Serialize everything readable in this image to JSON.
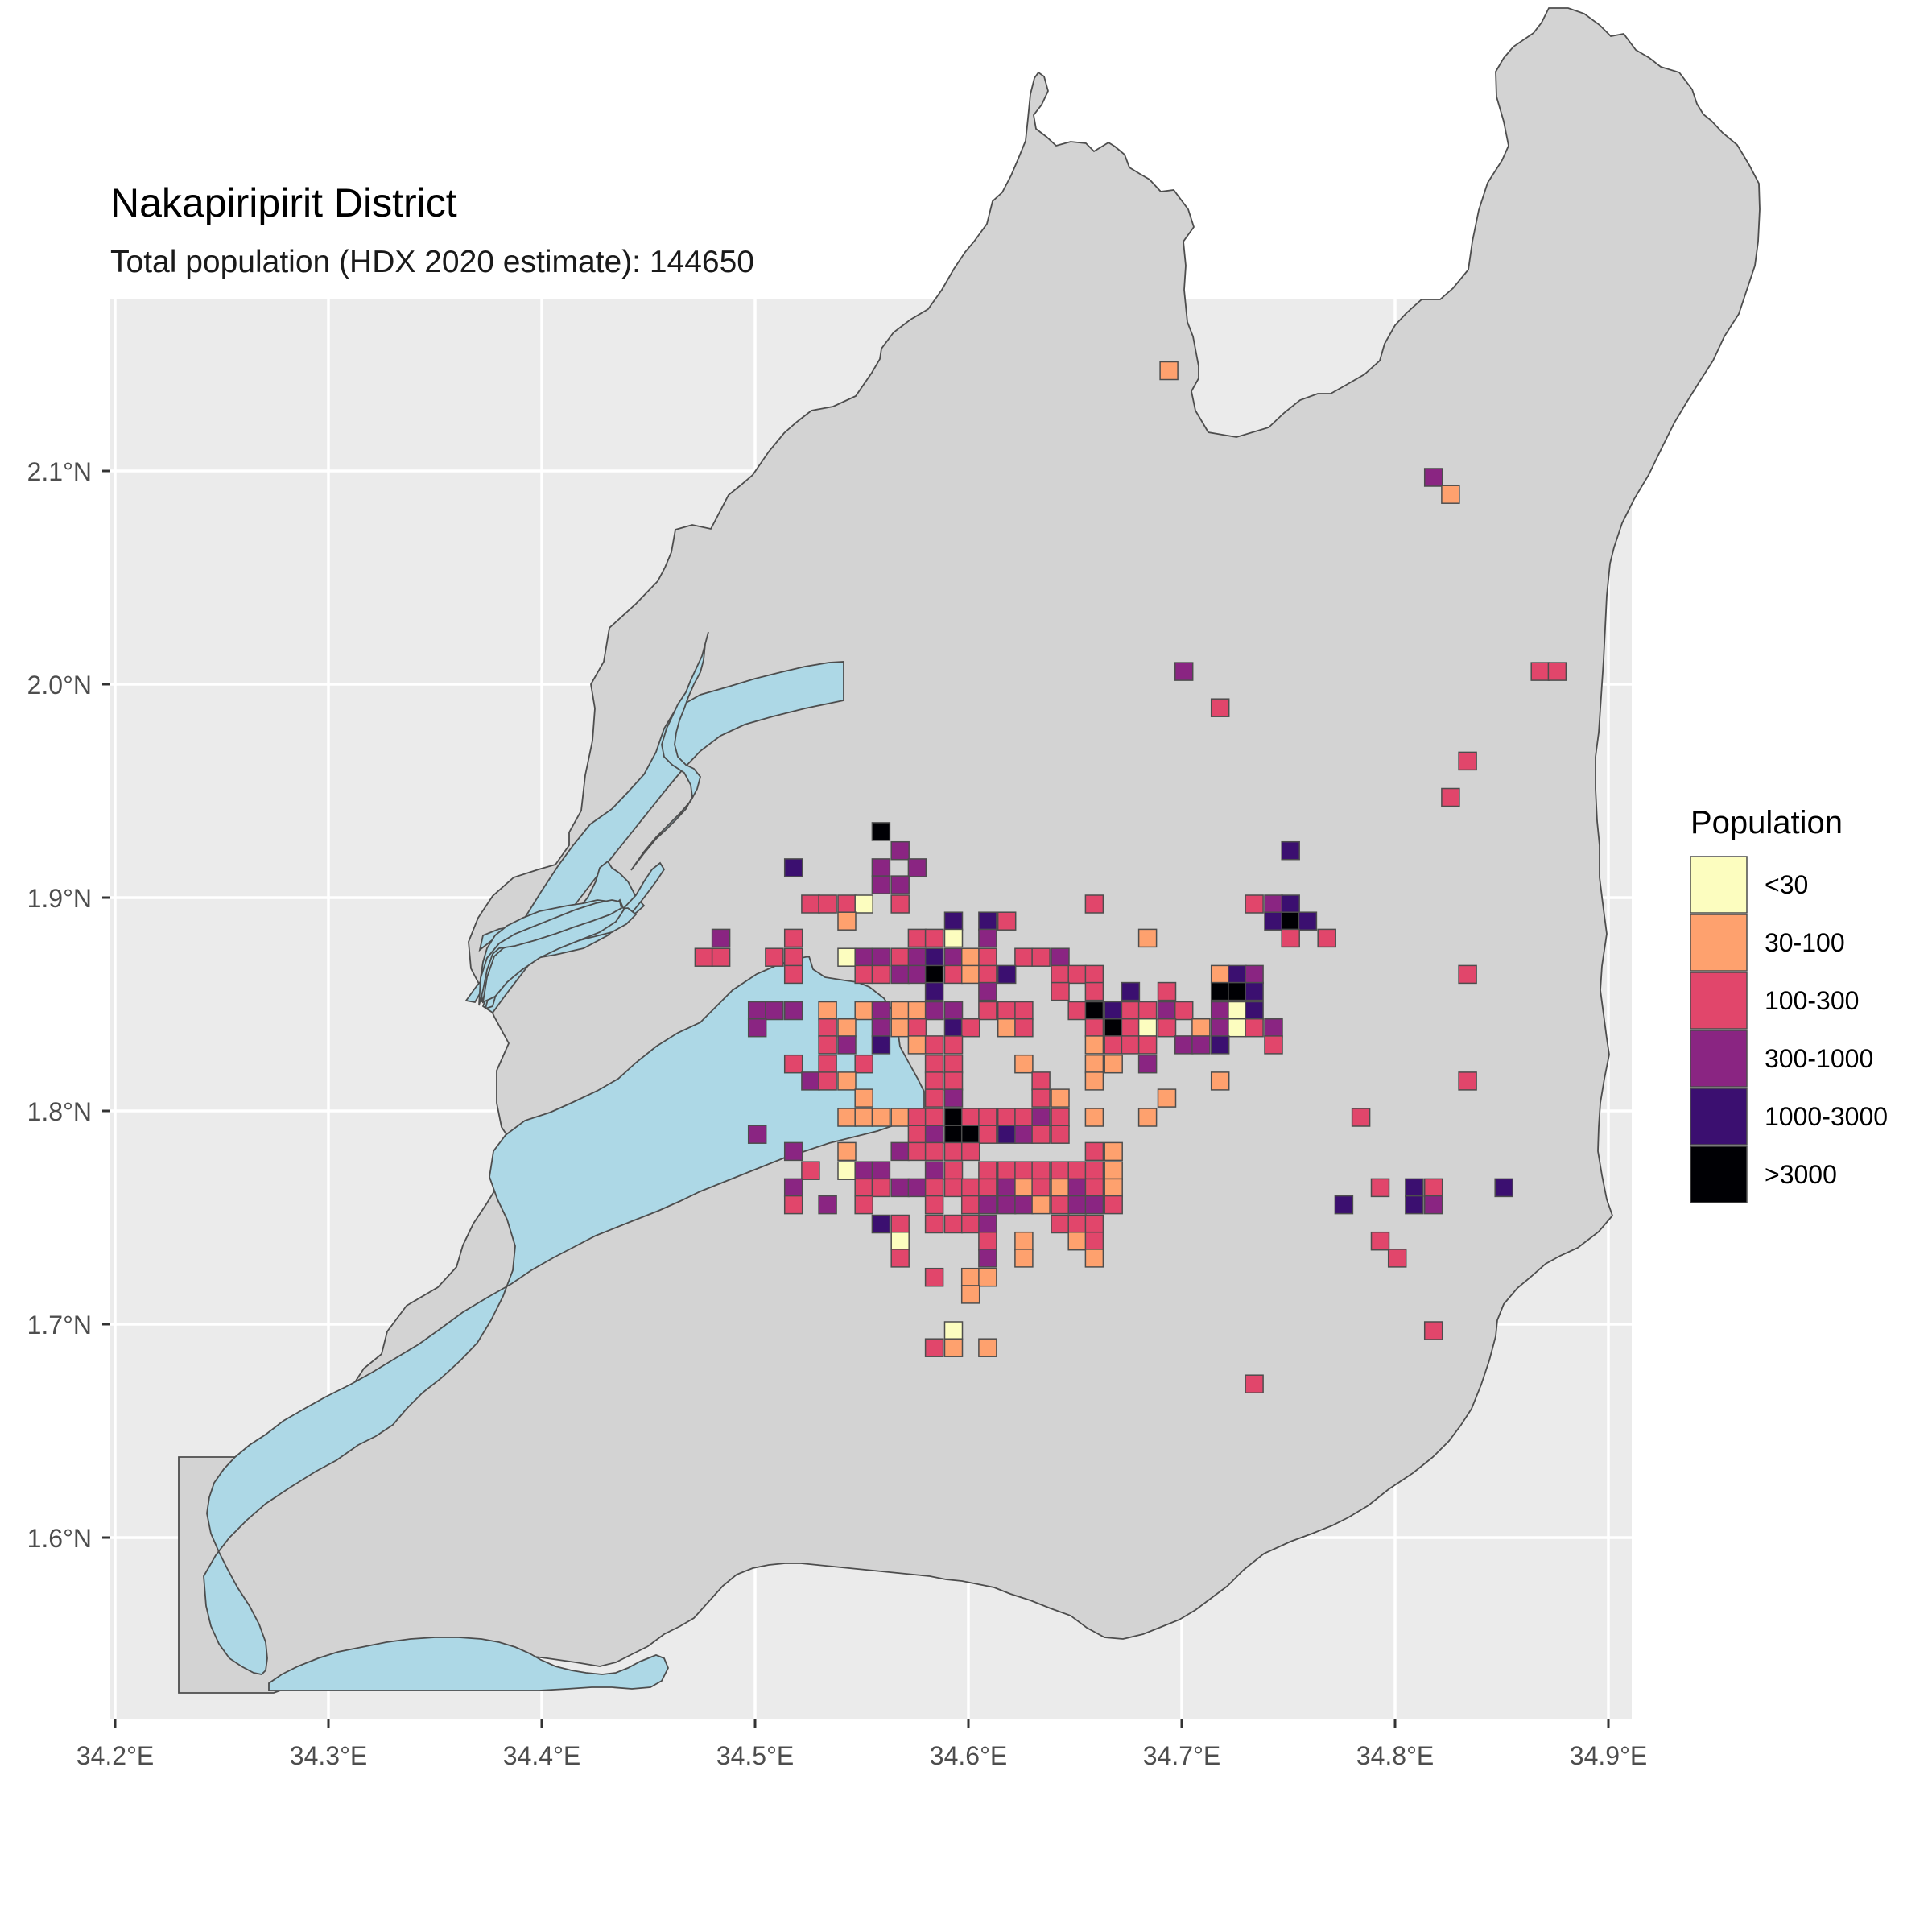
{
  "title": "Nakapiripirit District",
  "subtitle": "Total population (HDX 2020 estimate): 144650",
  "x_ticks": [
    "34.2°E",
    "34.3°E",
    "34.4°E",
    "34.5°E",
    "34.6°E",
    "34.7°E",
    "34.8°E",
    "34.9°E"
  ],
  "y_ticks": [
    "2.1°N",
    "2.0°N",
    "1.9°N",
    "1.8°N",
    "1.7°N",
    "1.6°N"
  ],
  "legend": {
    "title": "Population",
    "items": [
      {
        "label": "<30",
        "color": "#fcfdbf"
      },
      {
        "label": "30-100",
        "color": "#fea16e"
      },
      {
        "label": "100-300",
        "color": "#e1466b"
      },
      {
        "label": "300-1000",
        "color": "#8a2582"
      },
      {
        "label": "1000-3000",
        "color": "#3b0f70"
      },
      {
        "label": ">3000",
        "color": "#000004"
      }
    ]
  },
  "colors": {
    "panel": "#ebebeb",
    "grid": "#ffffff",
    "land": "#d3d3d3",
    "water": "#add8e6",
    "outline": "#4d4d4d"
  },
  "chart_data": {
    "type": "heatmap",
    "x_axis": {
      "unit": "degrees East",
      "range": [
        34.19,
        34.91
      ],
      "ticks": [
        34.2,
        34.3,
        34.4,
        34.5,
        34.6,
        34.7,
        34.8,
        34.9
      ]
    },
    "y_axis": {
      "unit": "degrees North",
      "range": [
        1.54,
        2.17
      ],
      "ticks": [
        1.6,
        1.7,
        1.8,
        1.9,
        2.0,
        2.1
      ]
    },
    "cell_size_deg": 0.0083,
    "category_labels": [
      "<30",
      "30-100",
      "100-300",
      "300-1000",
      "1000-3000",
      ">3000"
    ],
    "cells": [
      [
        34.694,
        2.147,
        1
      ],
      [
        34.818,
        2.097,
        3
      ],
      [
        34.826,
        2.089,
        1
      ],
      [
        34.701,
        2.006,
        3
      ],
      [
        34.718,
        1.989,
        2
      ],
      [
        34.868,
        2.006,
        2
      ],
      [
        34.876,
        2.006,
        2
      ],
      [
        34.834,
        1.964,
        2
      ],
      [
        34.826,
        1.947,
        2
      ],
      [
        34.559,
        1.931,
        5
      ],
      [
        34.568,
        1.922,
        3
      ],
      [
        34.518,
        1.914,
        4
      ],
      [
        34.559,
        1.914,
        3
      ],
      [
        34.576,
        1.914,
        3
      ],
      [
        34.559,
        1.906,
        3
      ],
      [
        34.568,
        1.906,
        3
      ],
      [
        34.751,
        1.922,
        4
      ],
      [
        34.526,
        1.897,
        2
      ],
      [
        34.534,
        1.897,
        2
      ],
      [
        34.543,
        1.897,
        2
      ],
      [
        34.551,
        1.897,
        0
      ],
      [
        34.568,
        1.897,
        2
      ],
      [
        34.543,
        1.889,
        1
      ],
      [
        34.659,
        1.897,
        2
      ],
      [
        34.734,
        1.897,
        2
      ],
      [
        34.743,
        1.897,
        3
      ],
      [
        34.751,
        1.897,
        4
      ],
      [
        34.593,
        1.889,
        4
      ],
      [
        34.609,
        1.889,
        4
      ],
      [
        34.618,
        1.889,
        2
      ],
      [
        34.743,
        1.889,
        4
      ],
      [
        34.751,
        1.889,
        5
      ],
      [
        34.759,
        1.889,
        4
      ],
      [
        34.576,
        1.881,
        2
      ],
      [
        34.584,
        1.881,
        2
      ],
      [
        34.593,
        1.881,
        0
      ],
      [
        34.609,
        1.881,
        3
      ],
      [
        34.684,
        1.881,
        1
      ],
      [
        34.751,
        1.881,
        2
      ],
      [
        34.768,
        1.881,
        2
      ],
      [
        34.518,
        1.881,
        2
      ],
      [
        34.476,
        1.872,
        2
      ],
      [
        34.484,
        1.872,
        2
      ],
      [
        34.484,
        1.881,
        3
      ],
      [
        34.509,
        1.872,
        2
      ],
      [
        34.518,
        1.872,
        2
      ],
      [
        34.543,
        1.872,
        0
      ],
      [
        34.551,
        1.872,
        3
      ],
      [
        34.559,
        1.872,
        3
      ],
      [
        34.568,
        1.872,
        2
      ],
      [
        34.576,
        1.872,
        3
      ],
      [
        34.584,
        1.872,
        4
      ],
      [
        34.593,
        1.872,
        3
      ],
      [
        34.601,
        1.872,
        1
      ],
      [
        34.609,
        1.872,
        2
      ],
      [
        34.626,
        1.872,
        2
      ],
      [
        34.634,
        1.872,
        2
      ],
      [
        34.643,
        1.872,
        3
      ],
      [
        34.518,
        1.864,
        2
      ],
      [
        34.551,
        1.864,
        2
      ],
      [
        34.559,
        1.864,
        2
      ],
      [
        34.568,
        1.864,
        3
      ],
      [
        34.576,
        1.864,
        3
      ],
      [
        34.584,
        1.864,
        5
      ],
      [
        34.593,
        1.864,
        2
      ],
      [
        34.601,
        1.864,
        1
      ],
      [
        34.609,
        1.864,
        2
      ],
      [
        34.618,
        1.864,
        4
      ],
      [
        34.643,
        1.864,
        2
      ],
      [
        34.651,
        1.864,
        2
      ],
      [
        34.659,
        1.864,
        2
      ],
      [
        34.718,
        1.864,
        1
      ],
      [
        34.726,
        1.864,
        4
      ],
      [
        34.734,
        1.864,
        3
      ],
      [
        34.834,
        1.864,
        2
      ],
      [
        34.501,
        1.847,
        3
      ],
      [
        34.509,
        1.847,
        3
      ],
      [
        34.518,
        1.847,
        3
      ],
      [
        34.534,
        1.847,
        1
      ],
      [
        34.551,
        1.847,
        1
      ],
      [
        34.559,
        1.847,
        3
      ],
      [
        34.568,
        1.847,
        1
      ],
      [
        34.576,
        1.847,
        1
      ],
      [
        34.584,
        1.847,
        3
      ],
      [
        34.593,
        1.847,
        3
      ],
      [
        34.609,
        1.847,
        2
      ],
      [
        34.618,
        1.847,
        2
      ],
      [
        34.626,
        1.847,
        2
      ],
      [
        34.651,
        1.847,
        2
      ],
      [
        34.659,
        1.847,
        5
      ],
      [
        34.668,
        1.847,
        4
      ],
      [
        34.676,
        1.847,
        2
      ],
      [
        34.684,
        1.847,
        2
      ],
      [
        34.693,
        1.847,
        3
      ],
      [
        34.701,
        1.847,
        2
      ],
      [
        34.584,
        1.856,
        4
      ],
      [
        34.609,
        1.856,
        3
      ],
      [
        34.643,
        1.856,
        2
      ],
      [
        34.659,
        1.856,
        2
      ],
      [
        34.676,
        1.856,
        4
      ],
      [
        34.693,
        1.856,
        2
      ],
      [
        34.718,
        1.856,
        5
      ],
      [
        34.726,
        1.856,
        5
      ],
      [
        34.734,
        1.856,
        4
      ],
      [
        34.718,
        1.847,
        3
      ],
      [
        34.726,
        1.847,
        0
      ],
      [
        34.734,
        1.847,
        4
      ],
      [
        34.501,
        1.839,
        3
      ],
      [
        34.534,
        1.839,
        2
      ],
      [
        34.543,
        1.839,
        1
      ],
      [
        34.559,
        1.839,
        3
      ],
      [
        34.568,
        1.839,
        1
      ],
      [
        34.576,
        1.839,
        2
      ],
      [
        34.593,
        1.839,
        4
      ],
      [
        34.601,
        1.839,
        2
      ],
      [
        34.618,
        1.839,
        1
      ],
      [
        34.626,
        1.839,
        2
      ],
      [
        34.659,
        1.839,
        2
      ],
      [
        34.668,
        1.839,
        5
      ],
      [
        34.676,
        1.839,
        2
      ],
      [
        34.684,
        1.839,
        0
      ],
      [
        34.693,
        1.839,
        2
      ],
      [
        34.709,
        1.839,
        1
      ],
      [
        34.718,
        1.839,
        3
      ],
      [
        34.726,
        1.839,
        0
      ],
      [
        34.734,
        1.839,
        2
      ],
      [
        34.743,
        1.839,
        3
      ],
      [
        34.534,
        1.831,
        2
      ],
      [
        34.543,
        1.831,
        3
      ],
      [
        34.559,
        1.831,
        4
      ],
      [
        34.576,
        1.831,
        1
      ],
      [
        34.584,
        1.831,
        2
      ],
      [
        34.593,
        1.831,
        2
      ],
      [
        34.659,
        1.831,
        1
      ],
      [
        34.668,
        1.831,
        2
      ],
      [
        34.676,
        1.831,
        2
      ],
      [
        34.684,
        1.831,
        2
      ],
      [
        34.701,
        1.831,
        3
      ],
      [
        34.709,
        1.831,
        3
      ],
      [
        34.718,
        1.831,
        4
      ],
      [
        34.743,
        1.831,
        2
      ],
      [
        34.518,
        1.822,
        2
      ],
      [
        34.534,
        1.822,
        2
      ],
      [
        34.551,
        1.822,
        2
      ],
      [
        34.584,
        1.822,
        2
      ],
      [
        34.593,
        1.822,
        2
      ],
      [
        34.626,
        1.822,
        1
      ],
      [
        34.659,
        1.822,
        1
      ],
      [
        34.668,
        1.822,
        1
      ],
      [
        34.684,
        1.822,
        3
      ],
      [
        34.526,
        1.814,
        3
      ],
      [
        34.534,
        1.814,
        2
      ],
      [
        34.543,
        1.814,
        1
      ],
      [
        34.584,
        1.814,
        2
      ],
      [
        34.593,
        1.814,
        2
      ],
      [
        34.634,
        1.814,
        2
      ],
      [
        34.659,
        1.814,
        1
      ],
      [
        34.718,
        1.814,
        1
      ],
      [
        34.834,
        1.814,
        2
      ],
      [
        34.551,
        1.806,
        1
      ],
      [
        34.584,
        1.806,
        2
      ],
      [
        34.593,
        1.806,
        3
      ],
      [
        34.634,
        1.806,
        2
      ],
      [
        34.643,
        1.806,
        1
      ],
      [
        34.693,
        1.806,
        1
      ],
      [
        34.543,
        1.797,
        1
      ],
      [
        34.551,
        1.797,
        1
      ],
      [
        34.559,
        1.797,
        1
      ],
      [
        34.568,
        1.797,
        1
      ],
      [
        34.576,
        1.797,
        2
      ],
      [
        34.584,
        1.797,
        2
      ],
      [
        34.593,
        1.797,
        5
      ],
      [
        34.601,
        1.797,
        2
      ],
      [
        34.609,
        1.797,
        2
      ],
      [
        34.618,
        1.797,
        2
      ],
      [
        34.626,
        1.797,
        2
      ],
      [
        34.634,
        1.797,
        3
      ],
      [
        34.643,
        1.797,
        2
      ],
      [
        34.659,
        1.797,
        1
      ],
      [
        34.684,
        1.797,
        1
      ],
      [
        34.784,
        1.797,
        2
      ],
      [
        34.501,
        1.789,
        3
      ],
      [
        34.576,
        1.789,
        2
      ],
      [
        34.584,
        1.789,
        3
      ],
      [
        34.593,
        1.789,
        5
      ],
      [
        34.601,
        1.789,
        5
      ],
      [
        34.609,
        1.789,
        2
      ],
      [
        34.618,
        1.789,
        4
      ],
      [
        34.626,
        1.789,
        3
      ],
      [
        34.634,
        1.789,
        2
      ],
      [
        34.643,
        1.789,
        2
      ],
      [
        34.518,
        1.781,
        3
      ],
      [
        34.543,
        1.781,
        1
      ],
      [
        34.568,
        1.781,
        3
      ],
      [
        34.576,
        1.781,
        2
      ],
      [
        34.584,
        1.781,
        2
      ],
      [
        34.593,
        1.781,
        2
      ],
      [
        34.601,
        1.781,
        2
      ],
      [
        34.659,
        1.781,
        2
      ],
      [
        34.668,
        1.781,
        1
      ],
      [
        34.526,
        1.772,
        2
      ],
      [
        34.543,
        1.772,
        0
      ],
      [
        34.551,
        1.772,
        3
      ],
      [
        34.559,
        1.772,
        3
      ],
      [
        34.584,
        1.772,
        3
      ],
      [
        34.593,
        1.772,
        2
      ],
      [
        34.609,
        1.772,
        2
      ],
      [
        34.618,
        1.772,
        2
      ],
      [
        34.626,
        1.772,
        2
      ],
      [
        34.634,
        1.772,
        2
      ],
      [
        34.643,
        1.772,
        2
      ],
      [
        34.651,
        1.772,
        2
      ],
      [
        34.659,
        1.772,
        2
      ],
      [
        34.668,
        1.772,
        1
      ],
      [
        34.518,
        1.764,
        3
      ],
      [
        34.551,
        1.764,
        2
      ],
      [
        34.559,
        1.764,
        2
      ],
      [
        34.568,
        1.764,
        3
      ],
      [
        34.576,
        1.764,
        3
      ],
      [
        34.584,
        1.764,
        2
      ],
      [
        34.593,
        1.764,
        2
      ],
      [
        34.601,
        1.764,
        2
      ],
      [
        34.609,
        1.764,
        2
      ],
      [
        34.618,
        1.764,
        3
      ],
      [
        34.626,
        1.764,
        1
      ],
      [
        34.634,
        1.764,
        2
      ],
      [
        34.643,
        1.764,
        1
      ],
      [
        34.651,
        1.764,
        3
      ],
      [
        34.659,
        1.764,
        2
      ],
      [
        34.668,
        1.764,
        1
      ],
      [
        34.793,
        1.764,
        2
      ],
      [
        34.809,
        1.764,
        4
      ],
      [
        34.818,
        1.764,
        2
      ],
      [
        34.851,
        1.764,
        4
      ],
      [
        34.518,
        1.756,
        2
      ],
      [
        34.534,
        1.756,
        3
      ],
      [
        34.551,
        1.756,
        2
      ],
      [
        34.584,
        1.756,
        2
      ],
      [
        34.601,
        1.756,
        2
      ],
      [
        34.609,
        1.756,
        3
      ],
      [
        34.618,
        1.756,
        3
      ],
      [
        34.626,
        1.756,
        3
      ],
      [
        34.634,
        1.756,
        1
      ],
      [
        34.643,
        1.756,
        2
      ],
      [
        34.651,
        1.756,
        3
      ],
      [
        34.659,
        1.756,
        3
      ],
      [
        34.668,
        1.756,
        2
      ],
      [
        34.776,
        1.756,
        4
      ],
      [
        34.809,
        1.756,
        4
      ],
      [
        34.818,
        1.756,
        3
      ],
      [
        34.559,
        1.747,
        4
      ],
      [
        34.568,
        1.747,
        2
      ],
      [
        34.584,
        1.747,
        2
      ],
      [
        34.593,
        1.747,
        2
      ],
      [
        34.601,
        1.747,
        2
      ],
      [
        34.609,
        1.747,
        3
      ],
      [
        34.643,
        1.747,
        2
      ],
      [
        34.651,
        1.747,
        2
      ],
      [
        34.659,
        1.747,
        2
      ],
      [
        34.568,
        1.739,
        0
      ],
      [
        34.609,
        1.739,
        2
      ],
      [
        34.626,
        1.739,
        1
      ],
      [
        34.651,
        1.739,
        1
      ],
      [
        34.659,
        1.739,
        2
      ],
      [
        34.793,
        1.739,
        2
      ],
      [
        34.568,
        1.731,
        2
      ],
      [
        34.609,
        1.731,
        3
      ],
      [
        34.626,
        1.731,
        1
      ],
      [
        34.659,
        1.731,
        1
      ],
      [
        34.801,
        1.731,
        2
      ],
      [
        34.584,
        1.722,
        2
      ],
      [
        34.601,
        1.722,
        1
      ],
      [
        34.609,
        1.722,
        1
      ],
      [
        34.601,
        1.714,
        1
      ],
      [
        34.593,
        1.697,
        0
      ],
      [
        34.818,
        1.697,
        2
      ],
      [
        34.584,
        1.689,
        2
      ],
      [
        34.593,
        1.689,
        1
      ],
      [
        34.609,
        1.689,
        1
      ],
      [
        34.734,
        1.672,
        2
      ]
    ]
  }
}
